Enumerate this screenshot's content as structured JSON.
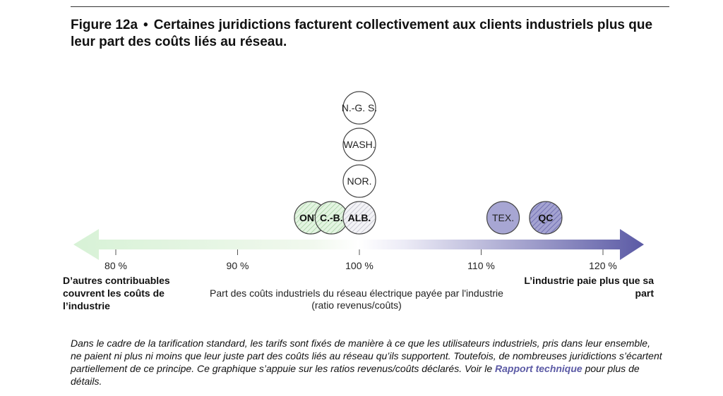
{
  "header": {
    "figure_label": "Figure 12a",
    "separator": "•",
    "title": "Certaines juridictions facturent collectivement aux clients industriels plus que leur part des coûts liés au réseau."
  },
  "chart_data": {
    "type": "scatter",
    "title": "Certaines juridictions facturent collectivement aux clients industriels plus que leur part des coûts liés au réseau.",
    "xlabel": "Part des coûts industriels du réseau électrique payée par l'industrie (ratio revenus/coûts)",
    "x_unit": "%",
    "xlim": [
      78,
      121
    ],
    "ticks": [
      80,
      90,
      100,
      110,
      120
    ],
    "tick_labels": [
      "80 %",
      "90 %",
      "100 %",
      "110 %",
      "120 %"
    ],
    "left_annotation": "D’autres contribuables couvrent les coûts de l’industrie",
    "right_annotation": "L’industrie paie plus que sa part",
    "colors": {
      "green_light": "#dff3df",
      "green_stroke": "#8cc08c",
      "purple": "#5b5aa5",
      "purple_light": "#a7a6d3",
      "outline": "#444444"
    },
    "points": [
      {
        "label": "ONT.",
        "x": 96.0,
        "style": "green-hatch",
        "bold": true
      },
      {
        "label": "C.-B.",
        "x": 97.7,
        "style": "green-hatch",
        "bold": true
      },
      {
        "label": "ALB.",
        "x": 100.0,
        "style": "grey-hatch",
        "bold": true
      },
      {
        "label": "NOR.",
        "x": 100.0,
        "style": "white",
        "bold": false
      },
      {
        "label": "WASH.",
        "x": 100.0,
        "style": "white",
        "bold": false
      },
      {
        "label": "N.-G. S.",
        "x": 100.0,
        "style": "white",
        "bold": false
      },
      {
        "label": "TEX.",
        "x": 111.8,
        "style": "purple-solid",
        "bold": false
      },
      {
        "label": "QC",
        "x": 115.3,
        "style": "purple-hatch",
        "bold": true
      }
    ]
  },
  "note": {
    "text_before": "Dans le cadre de la tarification standard, les tarifs sont fixés de manière à ce que les utilisateurs industriels, pris dans leur ensemble, ne paient ni plus ni moins que leur juste part des coûts liés au réseau qu’ils supportent. Toutefois, de nombreuses juridictions s’écartent partiellement de ce principe. Ce graphique s’appuie sur les ratios revenus/coûts déclarés. Voir le ",
    "link_text": "Rapport technique",
    "text_after": " pour plus de détails."
  }
}
